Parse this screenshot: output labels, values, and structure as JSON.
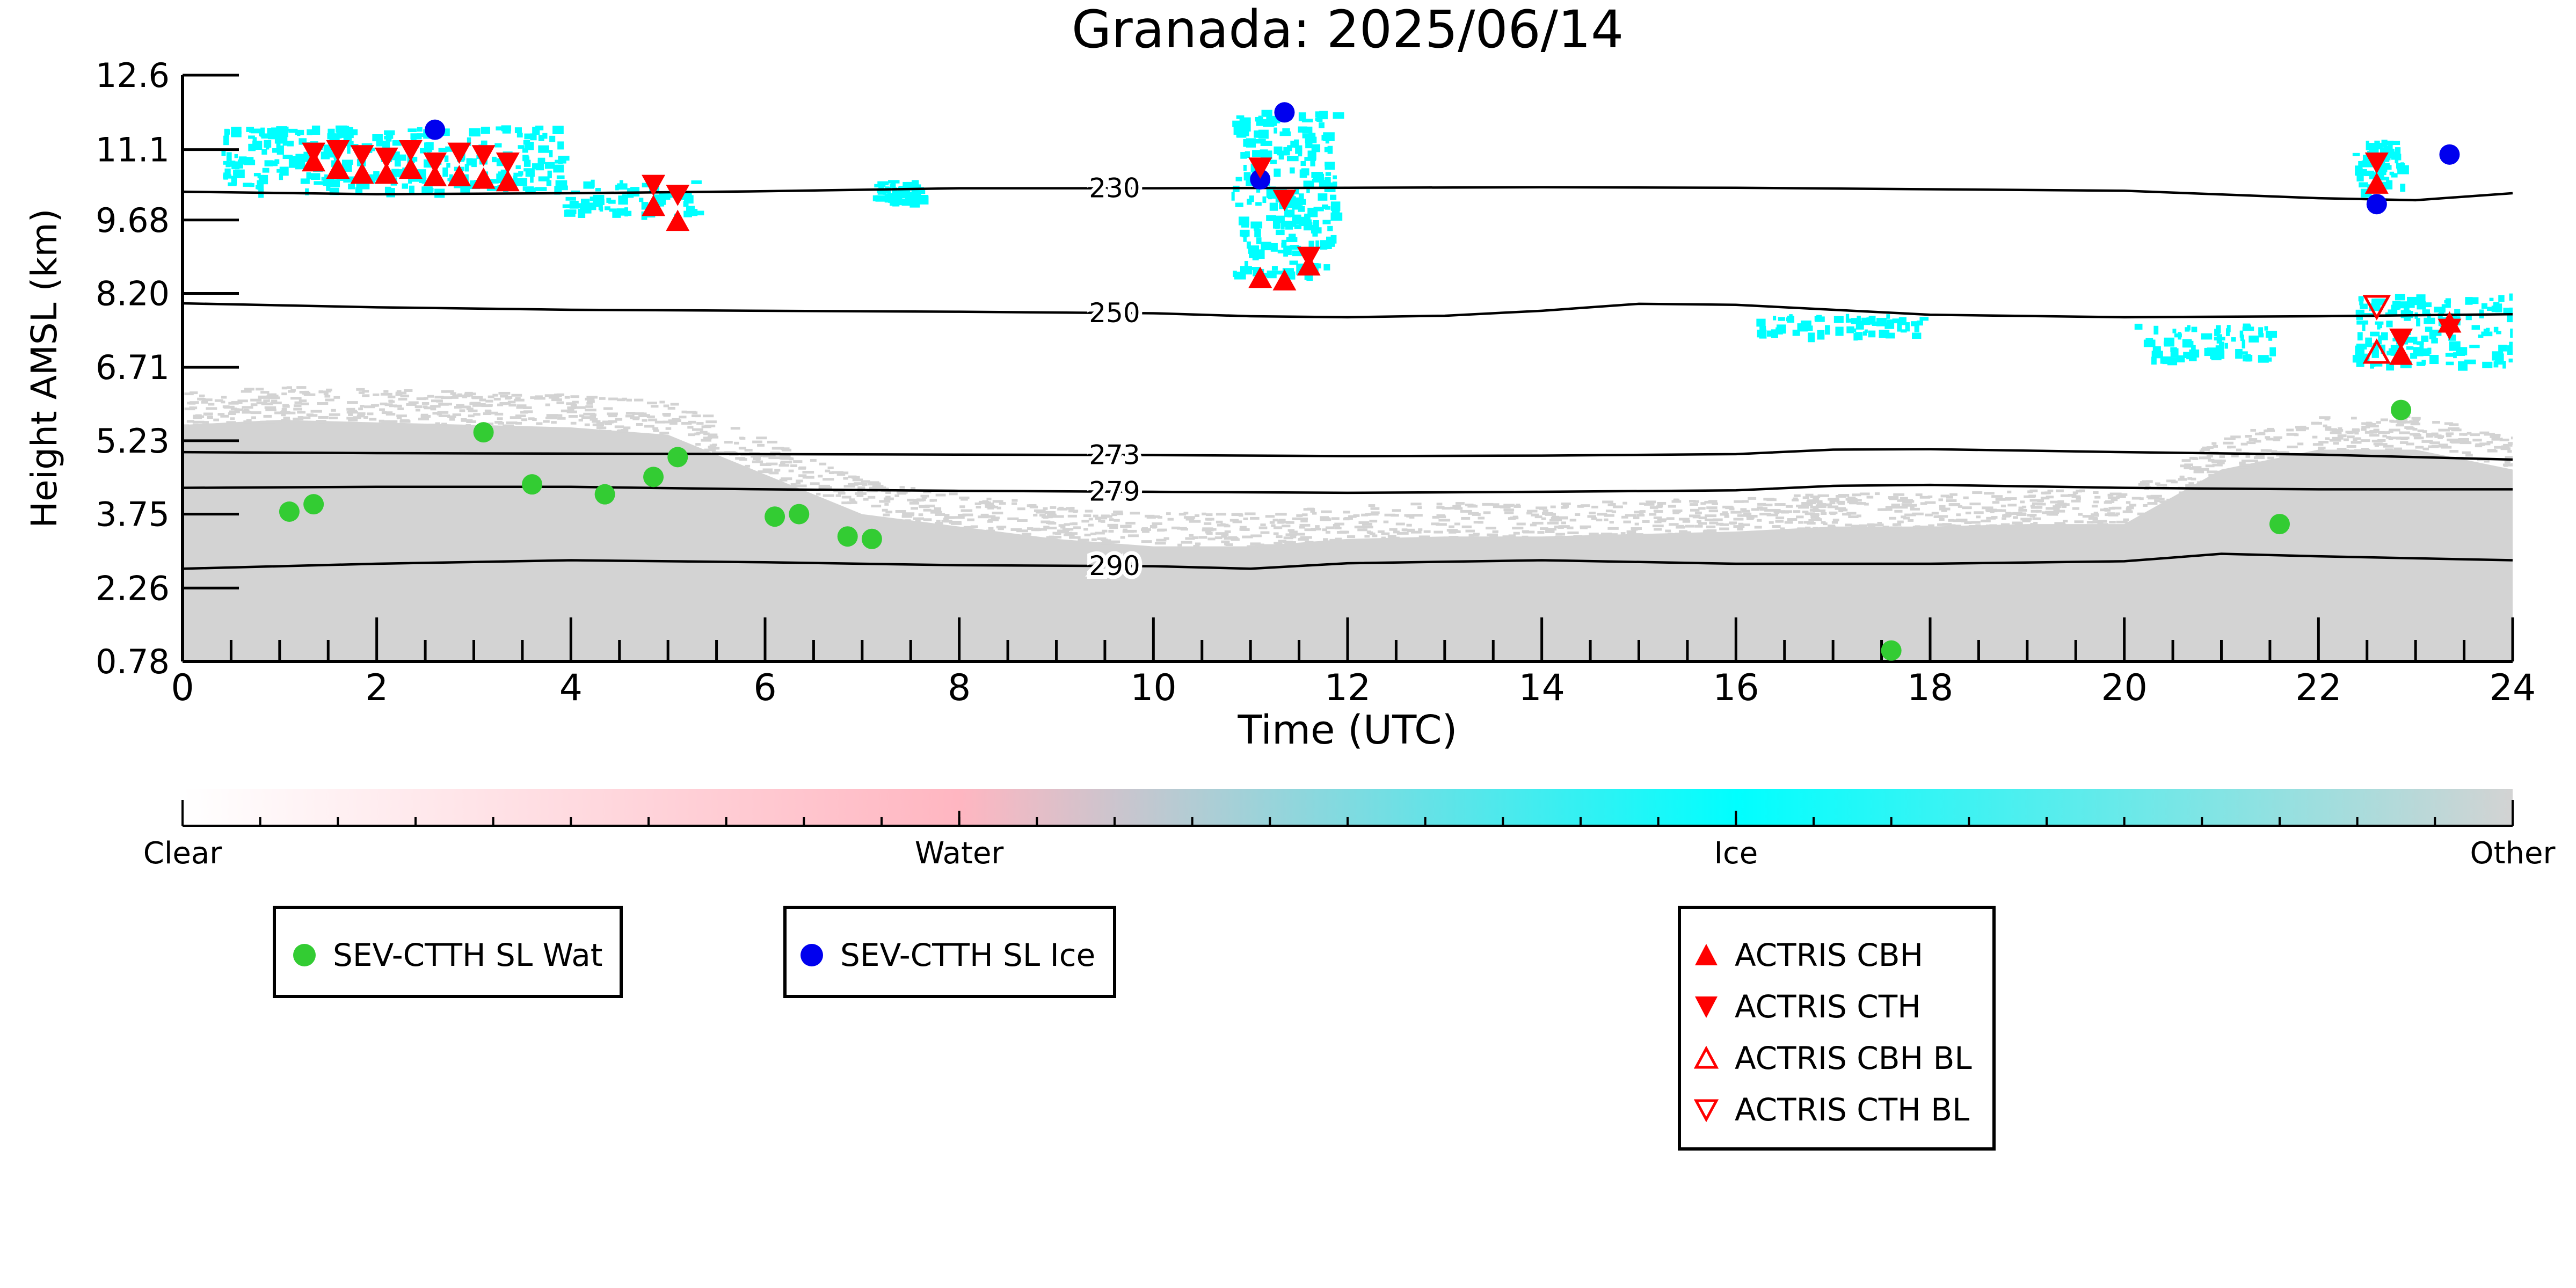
{
  "chart_data": {
    "type": "scatter",
    "title": "Granada: 2025/06/14",
    "xlabel": "Time (UTC)",
    "ylabel": "Height AMSL (km)",
    "xlim": [
      0,
      24
    ],
    "ylim": [
      0.78,
      12.6
    ],
    "x_ticks": [
      "0",
      "2",
      "4",
      "6",
      "8",
      "10",
      "12",
      "14",
      "16",
      "18",
      "20",
      "22",
      "24"
    ],
    "y_ticks": [
      "0.78",
      "2.26",
      "3.75",
      "5.23",
      "6.71",
      "8.20",
      "9.68",
      "11.1",
      "12.6"
    ],
    "grid": false,
    "series": [
      {
        "name": "SEV-CTTH SL Wat",
        "color": "#33cc33",
        "marker": "circle",
        "x": [
          1.1,
          1.35,
          3.1,
          3.6,
          4.35,
          4.85,
          5.1,
          6.1,
          6.35,
          6.85,
          7.1,
          17.6,
          21.6,
          22.85
        ],
        "y": [
          3.8,
          3.95,
          5.4,
          4.35,
          4.15,
          4.5,
          4.9,
          3.7,
          3.75,
          3.3,
          3.25,
          1.0,
          3.55,
          5.85
        ]
      },
      {
        "name": "SEV-CTTH SL Ice",
        "color": "#0000ee",
        "marker": "circle",
        "x": [
          2.6,
          11.1,
          11.35,
          22.6,
          23.35
        ],
        "y": [
          11.5,
          10.5,
          11.85,
          10.0,
          11.0
        ]
      },
      {
        "name": "ACTRIS CBH",
        "color": "#ff0000",
        "marker": "triangle-up",
        "x": [
          1.35,
          1.6,
          1.85,
          2.1,
          2.35,
          2.6,
          2.85,
          3.1,
          3.35,
          4.85,
          5.1,
          11.1,
          11.35,
          11.6,
          22.6,
          22.85,
          23.35
        ],
        "y": [
          10.85,
          10.7,
          10.6,
          10.6,
          10.7,
          10.55,
          10.55,
          10.5,
          10.45,
          9.95,
          9.65,
          8.5,
          8.45,
          8.75,
          10.4,
          6.95,
          7.6
        ]
      },
      {
        "name": "ACTRIS CTH",
        "color": "#ff0000",
        "marker": "triangle-down",
        "x": [
          1.35,
          1.6,
          1.85,
          2.1,
          2.35,
          2.6,
          2.85,
          3.1,
          3.35,
          4.85,
          5.1,
          11.1,
          11.35,
          11.6,
          22.6,
          22.85,
          23.35
        ],
        "y": [
          11.05,
          11.1,
          11.0,
          10.95,
          11.1,
          10.85,
          11.05,
          11.0,
          10.85,
          10.4,
          10.2,
          10.75,
          10.1,
          8.95,
          10.85,
          7.3,
          7.5
        ]
      },
      {
        "name": "ACTRIS CBH BL",
        "color": "#ff0000",
        "marker": "triangle-up-open",
        "x": [
          22.6
        ],
        "y": [
          7.0
        ]
      },
      {
        "name": "ACTRIS CTH BL",
        "color": "#ff0000",
        "marker": "triangle-down-open",
        "x": [
          22.6
        ],
        "y": [
          7.95
        ]
      }
    ],
    "isotherms": [
      {
        "label": "230",
        "x": [
          0,
          2,
          4,
          6,
          8,
          10,
          12,
          14,
          16,
          18,
          20,
          22,
          23,
          24
        ],
        "y": [
          10.25,
          10.2,
          10.22,
          10.26,
          10.32,
          10.32,
          10.33,
          10.34,
          10.33,
          10.3,
          10.27,
          10.12,
          10.08,
          10.22
        ]
      },
      {
        "label": "250",
        "x": [
          0,
          2,
          4,
          6,
          8,
          10,
          11,
          12,
          13,
          14,
          15,
          16,
          18,
          20,
          22,
          24
        ],
        "y": [
          8.0,
          7.92,
          7.87,
          7.85,
          7.83,
          7.8,
          7.74,
          7.72,
          7.75,
          7.85,
          7.99,
          7.97,
          7.77,
          7.72,
          7.74,
          7.78
        ]
      },
      {
        "label": "273",
        "x": [
          0,
          2,
          4,
          6,
          8,
          10,
          12,
          14,
          16,
          17,
          18,
          20,
          22,
          24
        ],
        "y": [
          5.0,
          4.98,
          4.97,
          4.96,
          4.95,
          4.94,
          4.92,
          4.93,
          4.96,
          5.05,
          5.06,
          5.0,
          4.95,
          4.85
        ]
      },
      {
        "label": "279",
        "x": [
          0,
          2,
          4,
          6,
          8,
          10,
          12,
          14,
          16,
          17,
          18,
          20,
          22,
          24
        ],
        "y": [
          4.28,
          4.3,
          4.3,
          4.25,
          4.22,
          4.2,
          4.18,
          4.2,
          4.23,
          4.32,
          4.34,
          4.28,
          4.25,
          4.25
        ]
      },
      {
        "label": "290",
        "x": [
          0,
          2,
          4,
          6,
          8,
          10,
          11,
          12,
          14,
          16,
          18,
          20,
          21,
          22,
          24
        ],
        "y": [
          2.65,
          2.75,
          2.82,
          2.78,
          2.72,
          2.7,
          2.65,
          2.76,
          2.82,
          2.75,
          2.75,
          2.8,
          2.95,
          2.9,
          2.82
        ]
      }
    ],
    "cloud_classes": {
      "water_color": "#ffb6c1",
      "ice_color": "#00ffff",
      "other_color": "#d3d3d3",
      "ice_regions": [
        {
          "x": [
            0.4,
            3.9
          ],
          "y": [
            10.3,
            11.6
          ]
        },
        {
          "x": [
            3.9,
            5.3
          ],
          "y": [
            9.8,
            10.5
          ]
        },
        {
          "x": [
            7.1,
            7.6
          ],
          "y": [
            10.1,
            10.5
          ]
        },
        {
          "x": [
            10.8,
            11.85
          ],
          "y": [
            8.6,
            11.9
          ]
        },
        {
          "x": [
            22.35,
            22.85
          ],
          "y": [
            10.3,
            11.3
          ]
        },
        {
          "x": [
            22.35,
            24.0
          ],
          "y": [
            6.8,
            8.2
          ]
        },
        {
          "x": [
            20.1,
            21.5
          ],
          "y": [
            6.9,
            7.6
          ]
        },
        {
          "x": [
            16.2,
            17.9
          ],
          "y": [
            7.4,
            7.8
          ]
        }
      ],
      "other_profile": {
        "x": [
          0,
          1,
          2,
          3,
          4,
          5,
          6,
          7,
          8,
          9,
          10,
          11,
          12,
          13,
          14,
          15,
          16,
          17,
          18,
          19,
          20,
          21,
          22,
          23,
          24
        ],
        "top": [
          5.9,
          6.0,
          5.95,
          5.9,
          5.85,
          5.7,
          4.9,
          4.1,
          3.85,
          3.6,
          3.45,
          3.45,
          3.6,
          3.65,
          3.65,
          3.7,
          3.75,
          3.85,
          3.85,
          3.9,
          3.9,
          5.0,
          5.4,
          5.4,
          5.0
        ]
      }
    },
    "colorbar": {
      "labels": [
        "Clear",
        "Water",
        "Ice",
        "Other"
      ],
      "colors": [
        "#ffffff",
        "#ffb6c1",
        "#00ffff",
        "#d3d3d3"
      ]
    }
  },
  "legends": {
    "box1": [
      {
        "label": "SEV-CTTH SL Wat",
        "color": "#33cc33",
        "marker": "circle"
      }
    ],
    "box2": [
      {
        "label": "SEV-CTTH SL Ice",
        "color": "#0000ee",
        "marker": "circle"
      }
    ],
    "box3": [
      {
        "label": "ACTRIS CBH",
        "color": "#ff0000",
        "marker": "triangle-up"
      },
      {
        "label": "ACTRIS CTH",
        "color": "#ff0000",
        "marker": "triangle-down"
      },
      {
        "label": "ACTRIS CBH BL",
        "color": "#ff0000",
        "marker": "triangle-up-open"
      },
      {
        "label": "ACTRIS CTH BL",
        "color": "#ff0000",
        "marker": "triangle-down-open"
      }
    ]
  }
}
